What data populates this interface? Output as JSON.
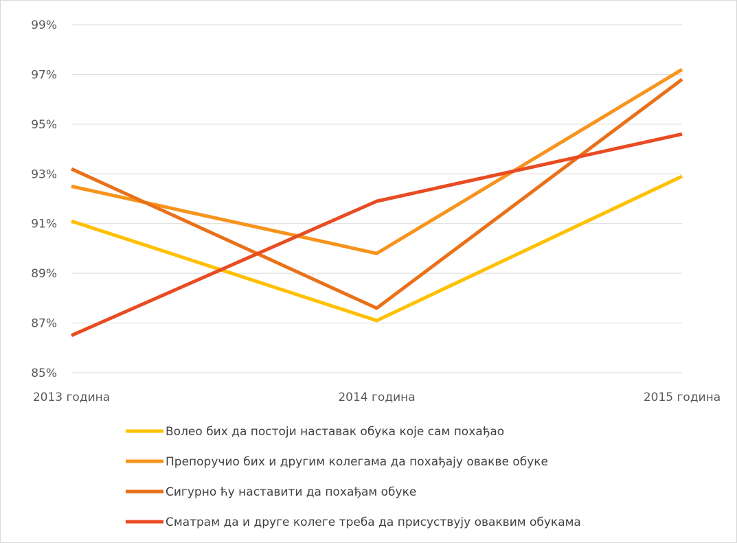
{
  "chart_data": {
    "type": "line",
    "title": "",
    "xlabel": "",
    "ylabel": "",
    "categories": [
      "2013 година",
      "2014 година",
      "2015 година"
    ],
    "ylim": [
      0.85,
      0.99
    ],
    "y_ticks": [
      "85%",
      "87%",
      "89%",
      "91%",
      "93%",
      "95%",
      "97%",
      "99%"
    ],
    "y_tick_values": [
      0.85,
      0.87,
      0.89,
      0.91,
      0.93,
      0.95,
      0.97,
      0.99
    ],
    "grid": true,
    "legend_position": "bottom",
    "series": [
      {
        "name": "Волео бих да постоји наставак обука које сам похађао",
        "color": "#FFC000",
        "values": [
          0.911,
          0.871,
          0.929
        ]
      },
      {
        "name": "Препоручио бих и другим колегама да похађају овакве обуке",
        "color": "#F7941D",
        "values": [
          0.925,
          0.898,
          0.972
        ]
      },
      {
        "name": "Сигурно ћу наставити да похађам обуке",
        "color": "#E8711A",
        "values": [
          0.932,
          0.876,
          0.968
        ]
      },
      {
        "name": "Сматрам да и друге колеге треба да присуствују оваквим обукама",
        "color": "#E84C22",
        "values": [
          0.865,
          0.919,
          0.946
        ]
      }
    ]
  }
}
